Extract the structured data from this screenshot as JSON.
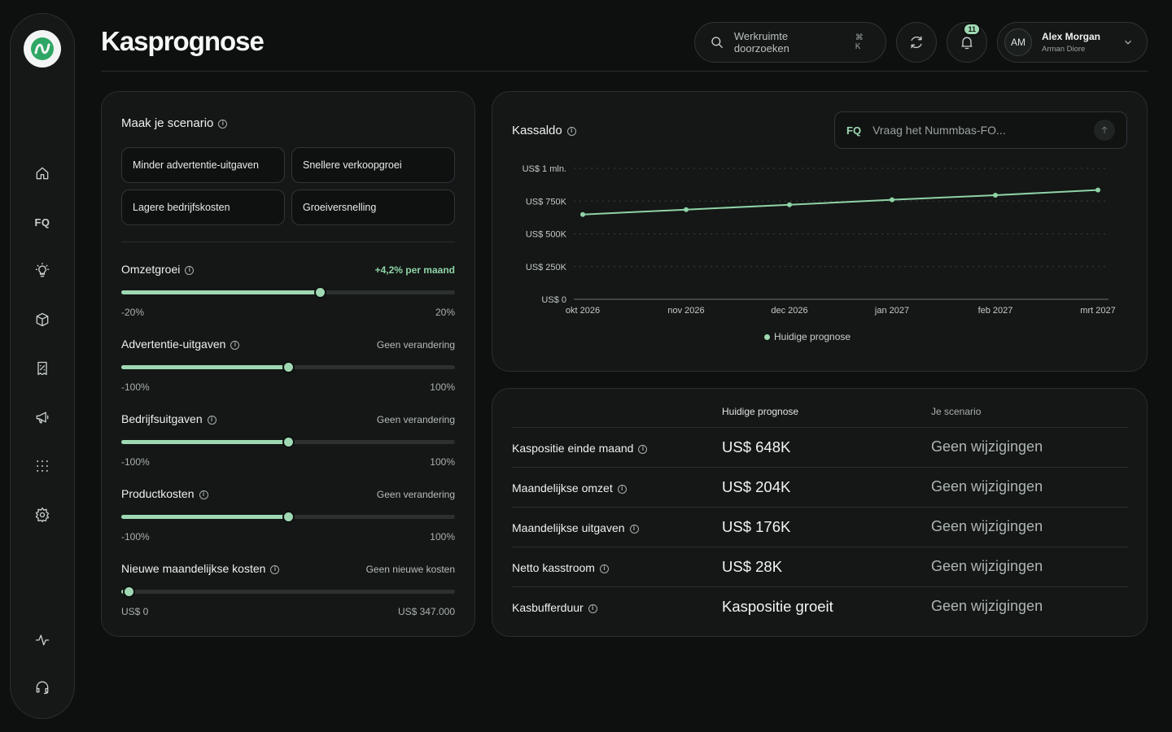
{
  "app": {
    "title": "Kasprognose"
  },
  "sidebar": {
    "logo": "nummbas-logo",
    "items": [
      {
        "name": "home-icon"
      },
      {
        "name": "fq-icon",
        "label": "FQ"
      },
      {
        "name": "lightbulb-icon"
      },
      {
        "name": "box-icon"
      },
      {
        "name": "receipt-icon"
      },
      {
        "name": "megaphone-icon"
      },
      {
        "name": "grid-icon"
      },
      {
        "name": "settings-icon"
      }
    ],
    "bottom": [
      {
        "name": "activity-icon"
      },
      {
        "name": "headset-icon"
      }
    ]
  },
  "header": {
    "search_placeholder": "Werkruimte doorzoeken",
    "search_shortcut": "⌘ K",
    "notification_count": "11",
    "user": {
      "initials": "AM",
      "name": "Alex Morgan",
      "org": "Arman Diore"
    }
  },
  "scenario": {
    "title": "Maak je scenario",
    "chips": [
      "Minder advertentie-uitgaven",
      "Snellere verkoopgroei",
      "Lagere bedrijfskosten",
      "Groeiversnelling"
    ],
    "sliders": [
      {
        "label": "Omzetgroei",
        "status": "+4,2% per maand",
        "min": "-20%",
        "max": "20%",
        "fraction": 0.595,
        "highlight": true
      },
      {
        "label": "Advertentie-uitgaven",
        "status": "Geen verandering",
        "min": "-100%",
        "max": "100%",
        "fraction": 0.5
      },
      {
        "label": "Bedrijfsuitgaven",
        "status": "Geen verandering",
        "min": "-100%",
        "max": "100%",
        "fraction": 0.5
      },
      {
        "label": "Productkosten",
        "status": "Geen verandering",
        "min": "-100%",
        "max": "100%",
        "fraction": 0.5
      },
      {
        "label": "Nieuwe maandelijkse kosten",
        "status": "Geen nieuwe kosten",
        "min": "US$ 0",
        "max": "US$ 347.000",
        "fraction": 0.0
      }
    ]
  },
  "cash_card": {
    "title": "Kassaldo",
    "ask_label": "FQ",
    "ask_placeholder": "Vraag het Nummbas-FO..."
  },
  "chart_data": {
    "type": "line",
    "x": [
      "okt 2026",
      "nov 2026",
      "dec 2026",
      "jan 2027",
      "feb 2027",
      "mrt 2027"
    ],
    "series": [
      {
        "name": "Huidige prognose",
        "values": [
          648000,
          685000,
          722000,
          760000,
          795000,
          835000
        ],
        "color": "#8fd3a6"
      }
    ],
    "yticks": [
      {
        "value": 1000000,
        "label": "US$ 1 mln."
      },
      {
        "value": 750000,
        "label": "US$ 750K"
      },
      {
        "value": 500000,
        "label": "US$ 500K"
      },
      {
        "value": 250000,
        "label": "US$ 250K"
      },
      {
        "value": 0,
        "label": "US$ 0"
      }
    ],
    "ylim": [
      0,
      1000000
    ],
    "grid": true,
    "legend_position": "bottom-center"
  },
  "summary": {
    "col_current": "Huidige prognose",
    "col_scenario": "Je scenario",
    "rows": [
      {
        "label": "Kaspositie einde maand",
        "current": "US$ 648K",
        "scenario": "Geen wijzigingen"
      },
      {
        "label": "Maandelijkse omzet",
        "current": "US$ 204K",
        "scenario": "Geen wijzigingen"
      },
      {
        "label": "Maandelijkse uitgaven",
        "current": "US$ 176K",
        "scenario": "Geen wijzigingen"
      },
      {
        "label": "Netto kasstroom",
        "current": "US$ 28K",
        "scenario": "Geen wijzigingen"
      },
      {
        "label": "Kasbufferduur",
        "current": "Kaspositie groeit",
        "scenario": "Geen wijzigingen"
      }
    ]
  },
  "colors": {
    "accent": "#9fd9b3",
    "background": "#0e0f0f",
    "card": "#141716"
  }
}
